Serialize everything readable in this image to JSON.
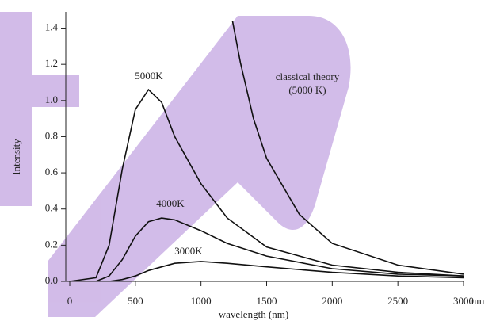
{
  "chart_data": {
    "type": "line",
    "xlabel": "wavelength (nm)",
    "xunit": "nm",
    "ylabel": "Intensity",
    "ylabel_color": "#8b4a1f",
    "xlim": [
      0,
      3000
    ],
    "ylim": [
      0,
      1.49
    ],
    "xticks": [
      0,
      500,
      1000,
      1500,
      2000,
      2500,
      3000
    ],
    "yticks": [
      {
        "value": 0,
        "label": "0.0"
      },
      {
        "value": 0.2,
        "label": "0.2"
      },
      {
        "value": 0.4,
        "label": "0.4"
      },
      {
        "value": 0.6,
        "label": "0.6"
      },
      {
        "value": 0.8,
        "label": "0.8"
      },
      {
        "value": 1.0,
        "label": "1.0"
      },
      {
        "value": 1.2,
        "label": "1.2"
      },
      {
        "value": 1.4,
        "label": "1.4"
      }
    ],
    "x": [
      0,
      200,
      300,
      400,
      500,
      600,
      700,
      800,
      1000,
      1200,
      1500,
      2000,
      2500,
      3000
    ],
    "series": [
      {
        "name": "5000K",
        "color": "#111111",
        "values": [
          0,
          0.02,
          0.2,
          0.62,
          0.95,
          1.06,
          0.99,
          0.8,
          0.54,
          0.35,
          0.19,
          0.09,
          0.05,
          0.03
        ]
      },
      {
        "name": "4000K",
        "color": "#111111",
        "values": [
          0,
          0,
          0.03,
          0.12,
          0.25,
          0.33,
          0.35,
          0.34,
          0.28,
          0.21,
          0.14,
          0.07,
          0.04,
          0.03
        ]
      },
      {
        "name": "3000K",
        "color": "#111111",
        "values": [
          0,
          0,
          0,
          0.01,
          0.03,
          0.06,
          0.08,
          0.1,
          0.11,
          0.1,
          0.08,
          0.05,
          0.03,
          0.02
        ]
      },
      {
        "name": "classical theory",
        "label_lines": [
          "classical theory",
          "(5000 K)"
        ],
        "color": "#111111",
        "x": [
          1240,
          1300,
          1400,
          1500,
          1750,
          2000,
          2500,
          3000
        ],
        "values": [
          1.44,
          1.21,
          0.9,
          0.68,
          0.37,
          0.21,
          0.09,
          0.04
        ]
      }
    ]
  }
}
